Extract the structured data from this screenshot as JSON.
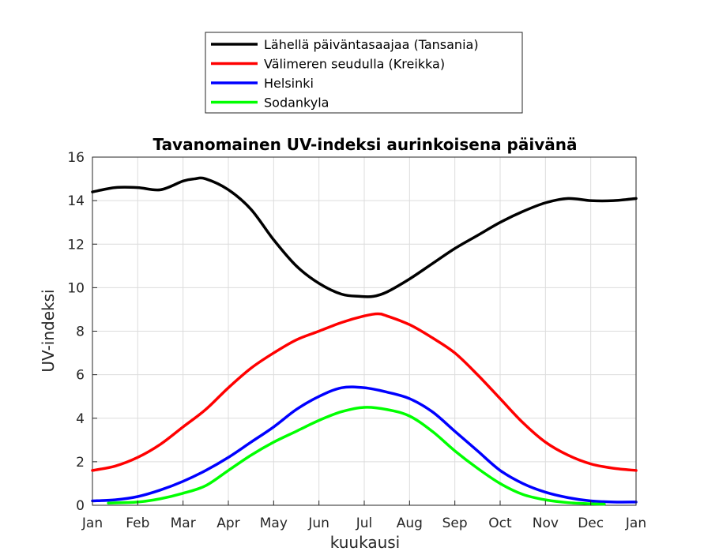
{
  "chart_data": {
    "type": "line",
    "title": "Tavanomainen UV-indeksi aurinkoisena päivänä",
    "xlabel": "kuukausi",
    "ylabel": "UV-indeksi",
    "ylim": [
      0,
      16
    ],
    "xlim": [
      0,
      12
    ],
    "grid": true,
    "legend_position": "top-center-outside",
    "x_ticks": [
      "Jan",
      "Feb",
      "Mar",
      "Apr",
      "May",
      "Jun",
      "Jul",
      "Aug",
      "Sep",
      "Oct",
      "Nov",
      "Dec",
      "Jan"
    ],
    "y_ticks": [
      0,
      2,
      4,
      6,
      8,
      10,
      12,
      14,
      16
    ],
    "series": [
      {
        "name": "Lähellä päiväntasaajaa (Tansania)",
        "color": "#000000",
        "x": [
          0,
          0.5,
          1,
          1.5,
          2,
          2.25,
          2.5,
          3,
          3.5,
          4,
          4.5,
          5,
          5.5,
          5.9,
          6.2,
          6.5,
          7,
          7.5,
          8,
          8.5,
          9,
          9.5,
          10,
          10.5,
          11,
          11.5,
          12
        ],
        "y": [
          14.4,
          14.6,
          14.6,
          14.5,
          14.9,
          15.0,
          15.0,
          14.5,
          13.6,
          12.2,
          11.0,
          10.2,
          9.7,
          9.6,
          9.6,
          9.8,
          10.4,
          11.1,
          11.8,
          12.4,
          13.0,
          13.5,
          13.9,
          14.1,
          14.0,
          14.0,
          14.1
        ]
      },
      {
        "name": "Välimeren seudulla (Kreikka)",
        "color": "#ff0000",
        "x": [
          0,
          0.5,
          1,
          1.5,
          2,
          2.5,
          3,
          3.5,
          4,
          4.5,
          5,
          5.5,
          6,
          6.3,
          6.5,
          7,
          7.5,
          8,
          8.5,
          9,
          9.5,
          10,
          10.5,
          11,
          11.5,
          12
        ],
        "y": [
          1.6,
          1.8,
          2.2,
          2.8,
          3.6,
          4.4,
          5.4,
          6.3,
          7.0,
          7.6,
          8.0,
          8.4,
          8.7,
          8.8,
          8.7,
          8.3,
          7.7,
          7.0,
          6.0,
          4.9,
          3.8,
          2.9,
          2.3,
          1.9,
          1.7,
          1.6
        ]
      },
      {
        "name": "Helsinki",
        "color": "#0000ff",
        "x": [
          0,
          0.5,
          1,
          1.5,
          2,
          2.5,
          3,
          3.5,
          4,
          4.5,
          5,
          5.5,
          6,
          6.5,
          7,
          7.5,
          8,
          8.5,
          9,
          9.5,
          10,
          10.5,
          11,
          11.5,
          12
        ],
        "y": [
          0.2,
          0.25,
          0.4,
          0.7,
          1.1,
          1.6,
          2.2,
          2.9,
          3.6,
          4.4,
          5.0,
          5.4,
          5.4,
          5.2,
          4.9,
          4.3,
          3.4,
          2.5,
          1.6,
          1.0,
          0.6,
          0.35,
          0.2,
          0.15,
          0.15
        ]
      },
      {
        "name": "Sodankyla",
        "color": "#00ff00",
        "x": [
          0.35,
          1,
          1.5,
          2,
          2.5,
          3,
          3.5,
          4,
          4.5,
          5,
          5.5,
          6,
          6.5,
          7,
          7.5,
          8,
          8.5,
          9,
          9.5,
          10,
          10.5,
          11,
          11.3
        ],
        "y": [
          0.1,
          0.15,
          0.3,
          0.55,
          0.9,
          1.6,
          2.3,
          2.9,
          3.4,
          3.9,
          4.3,
          4.5,
          4.4,
          4.1,
          3.4,
          2.5,
          1.7,
          1.0,
          0.5,
          0.25,
          0.12,
          0.07,
          0.05
        ]
      }
    ]
  }
}
